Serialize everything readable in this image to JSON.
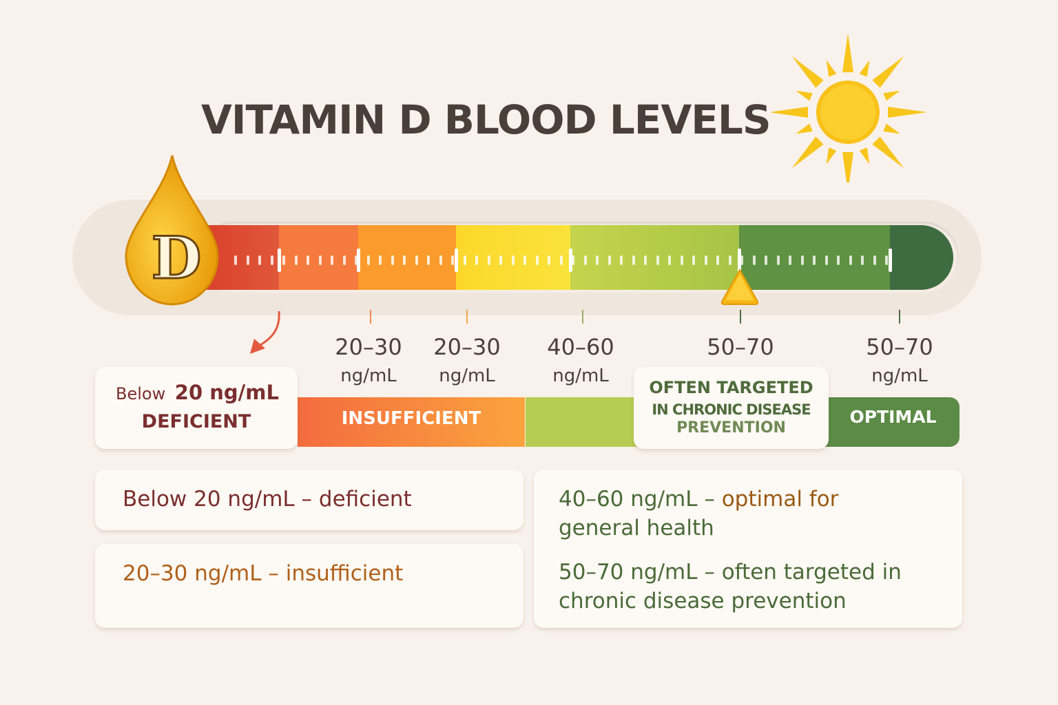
{
  "title": "VITAMIN D BLOOD LEVELS",
  "drop_letter": "D",
  "colors": {
    "red": "#d9472f",
    "orange": "#f4733a",
    "amber": "#fb9a2a",
    "yellow": "#fcd72a",
    "lightgreen": "#b5cc48",
    "green": "#5f9242",
    "darkgreen": "#3f6b40"
  },
  "scale_labels": [
    {
      "range": "20–30",
      "unit": "ng/mL"
    },
    {
      "range": "20–30",
      "unit": "ng/mL"
    },
    {
      "range": "40–60",
      "unit": "ng/mL"
    },
    {
      "range": "50–70",
      "unit": ""
    },
    {
      "range": "50–70",
      "unit": "ng/mL"
    }
  ],
  "marker_value": "50",
  "deficient_box": {
    "prefix": "Below",
    "value": "20 ng/mL",
    "label": "DEFICIENT"
  },
  "insufficient_label": "INSUFFICIENT",
  "targeted_box": {
    "line1": "OFTEN TARGETED",
    "line2": "IN CHRONIC DISEASE",
    "line3": "PREVENTION"
  },
  "optimal_label": "OPTIMAL",
  "cards": {
    "deficient": {
      "range": "Below 20 ng/mL",
      "sep": " – ",
      "desc": "deficient"
    },
    "insufficient": {
      "range": "20–30 ng/mL",
      "sep": " – ",
      "desc": "insufficient"
    },
    "optimal": {
      "range": "40–60 ng/mL",
      "sep": " – ",
      "desc": "optimal for",
      "desc2": "general health"
    },
    "targeted": {
      "range": "50–70 ng/mL",
      "sep": " – ",
      "desc": "often targeted in",
      "desc2": "chronic disease prevention"
    }
  }
}
